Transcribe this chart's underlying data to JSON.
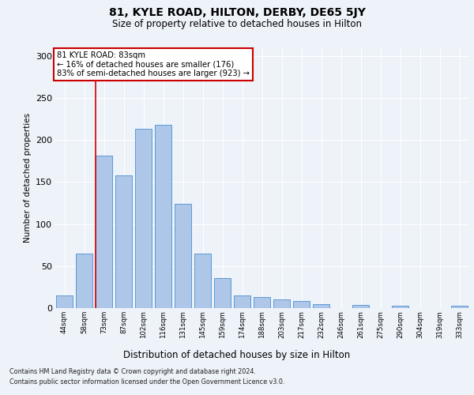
{
  "title_line1": "81, KYLE ROAD, HILTON, DERBY, DE65 5JY",
  "title_line2": "Size of property relative to detached houses in Hilton",
  "xlabel": "Distribution of detached houses by size in Hilton",
  "ylabel": "Number of detached properties",
  "categories": [
    "44sqm",
    "58sqm",
    "73sqm",
    "87sqm",
    "102sqm",
    "116sqm",
    "131sqm",
    "145sqm",
    "159sqm",
    "174sqm",
    "188sqm",
    "203sqm",
    "217sqm",
    "232sqm",
    "246sqm",
    "261sqm",
    "275sqm",
    "290sqm",
    "304sqm",
    "319sqm",
    "333sqm"
  ],
  "values": [
    15,
    65,
    181,
    158,
    213,
    218,
    124,
    65,
    36,
    15,
    13,
    10,
    8,
    5,
    0,
    4,
    0,
    3,
    0,
    0,
    3
  ],
  "bar_color": "#aec6e8",
  "bar_edge_color": "#5b9bd5",
  "vline_color": "#cc0000",
  "vline_x_index": 2,
  "annotation_text": "81 KYLE ROAD: 83sqm\n← 16% of detached houses are smaller (176)\n83% of semi-detached houses are larger (923) →",
  "annotation_box_color": "#ffffff",
  "annotation_box_edge": "#cc0000",
  "bg_color": "#eef2f9",
  "grid_color": "#ffffff",
  "ylim": [
    0,
    310
  ],
  "yticks": [
    0,
    50,
    100,
    150,
    200,
    250,
    300
  ],
  "footnote1": "Contains HM Land Registry data © Crown copyright and database right 2024.",
  "footnote2": "Contains public sector information licensed under the Open Government Licence v3.0."
}
